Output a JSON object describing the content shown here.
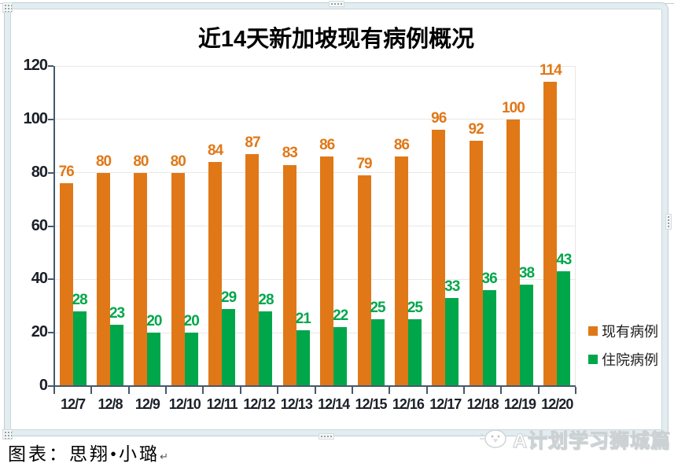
{
  "chart": {
    "title": "近14天新加坡现有病例概况"
  },
  "chart_data": {
    "type": "bar",
    "title": "近14天新加坡现有病例概况",
    "categories": [
      "12/7",
      "12/8",
      "12/9",
      "12/10",
      "12/11",
      "12/12",
      "12/13",
      "12/14",
      "12/15",
      "12/16",
      "12/17",
      "12/18",
      "12/19",
      "12/20"
    ],
    "series": [
      {
        "name": "现有病例",
        "color": "#E07818",
        "values": [
          76,
          80,
          80,
          80,
          84,
          87,
          83,
          86,
          79,
          86,
          96,
          92,
          100,
          114
        ]
      },
      {
        "name": "住院病例",
        "color": "#00A74A",
        "values": [
          28,
          23,
          20,
          20,
          29,
          28,
          21,
          22,
          25,
          25,
          33,
          36,
          38,
          43
        ]
      }
    ],
    "xlabel": "",
    "ylabel": "",
    "ylim": [
      0,
      120
    ],
    "yticks": [
      0,
      20,
      40,
      60,
      80,
      100,
      120
    ],
    "grid": true,
    "legend_position": "right",
    "data_labels": true
  },
  "caption": {
    "text": "图表：思翔•小璐",
    "return_mark": "↵"
  },
  "watermark": {
    "text": "A计划学习狮城篇",
    "icon": "chick-icon"
  },
  "colors": {
    "existing_cases": "#E07818",
    "hospitalized_cases": "#00A74A",
    "axis": "#46586B",
    "gridline": "#EAE8E6",
    "frame": "#E1EDF0"
  }
}
